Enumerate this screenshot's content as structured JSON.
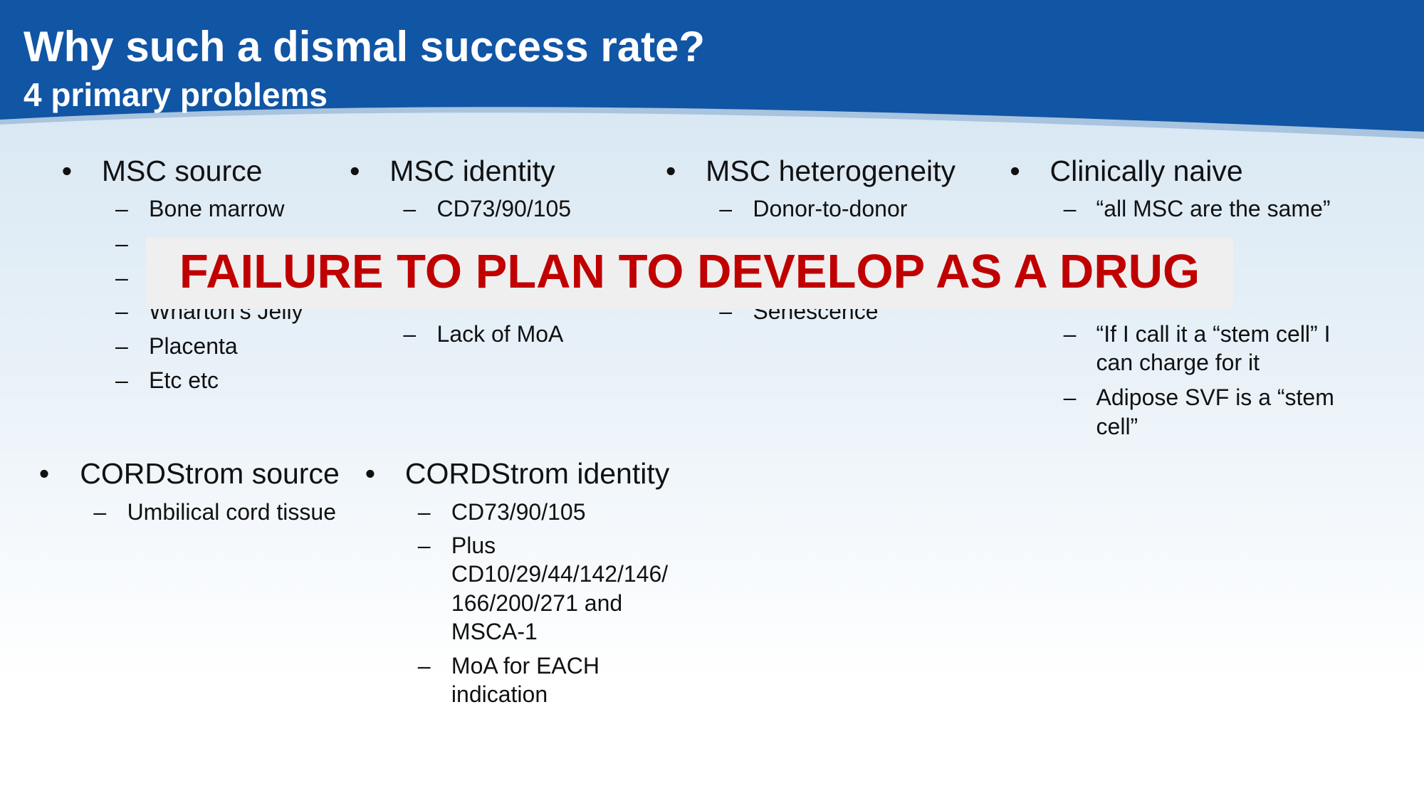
{
  "header": {
    "title": "Why such a dismal success rate?",
    "subtitle": "4 primary problems"
  },
  "columns": [
    {
      "heading": "MSC source",
      "items": [
        [
          "Bone marrow"
        ],
        [
          "Wharton’s Jelly"
        ],
        [
          "Placenta"
        ],
        [
          "Etc etc"
        ]
      ]
    },
    {
      "heading": "MSC identity",
      "items": [
        [
          "CD73/90/105"
        ],
        [
          "Lack of MoA"
        ]
      ]
    },
    {
      "heading": "MSC heterogeneity",
      "items": [
        [
          "Donor-to-donor"
        ],
        [
          "Senescence"
        ]
      ]
    },
    {
      "heading": "Clinically naive",
      "items": [
        [
          "“all MSC are the same”"
        ],
        [
          "“If I call it a “stem cell” I",
          "can charge for it"
        ],
        [
          "Adipose SVF is a “stem",
          "cell”"
        ]
      ]
    },
    {
      "heading": "CORDStrom source",
      "items": [
        [
          "Umbilical cord tissue"
        ]
      ]
    },
    {
      "heading": "CORDStrom identity",
      "items": [
        [
          "CD73/90/105"
        ],
        [
          "Plus",
          "CD10/29/44/142/146/",
          "166/200/271 and",
          "MSCA-1"
        ],
        [
          "MoA for EACH",
          "indication"
        ]
      ]
    }
  ],
  "banner": "FAILURE TO PLAN TO DEVELOP AS A DRUG"
}
